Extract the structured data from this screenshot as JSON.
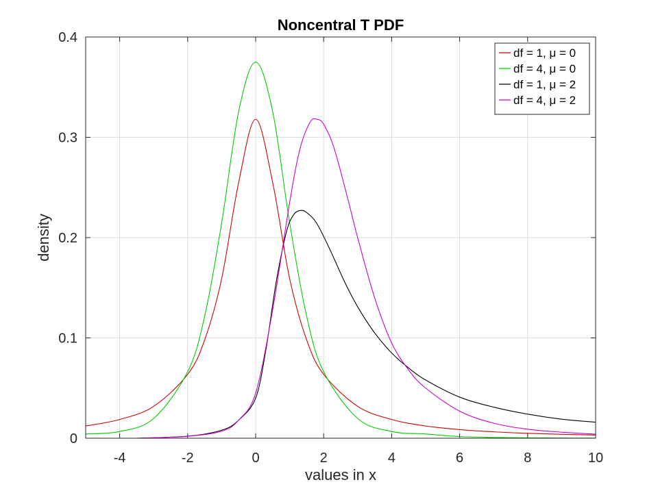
{
  "chart_data": {
    "type": "line",
    "title": "Noncentral T PDF",
    "xlabel": "values in x",
    "ylabel": "density",
    "xlim": [
      -5,
      10
    ],
    "ylim": [
      0,
      0.4
    ],
    "xticks": [
      -4,
      -2,
      0,
      2,
      4,
      6,
      8,
      10
    ],
    "yticks": [
      0,
      0.1,
      0.2,
      0.3,
      0.4
    ],
    "xtick_labels": [
      "-4",
      "-2",
      "0",
      "2",
      "4",
      "6",
      "8",
      "10"
    ],
    "ytick_labels": [
      "0",
      "0.1",
      "0.2",
      "0.3",
      "0.4"
    ],
    "grid": true,
    "legend_position": "top-right",
    "series": [
      {
        "name": "df = 1, μ = 0",
        "color": "#cc0000",
        "x": [
          -5,
          -4,
          -3,
          -2,
          -1.5,
          -1,
          -0.5,
          0,
          0.5,
          1,
          1.5,
          2,
          3,
          4,
          5,
          6,
          7,
          8,
          9,
          10
        ],
        "y": [
          0.0122,
          0.0187,
          0.0318,
          0.0637,
          0.098,
          0.159,
          0.255,
          0.318,
          0.255,
          0.159,
          0.098,
          0.0637,
          0.0318,
          0.0187,
          0.0122,
          0.0086,
          0.0064,
          0.0049,
          0.0039,
          0.0032
        ]
      },
      {
        "name": "df = 4, μ = 0",
        "color": "#00cc00",
        "x": [
          -5,
          -4,
          -3,
          -2,
          -1.5,
          -1,
          -0.5,
          0,
          0.5,
          1,
          1.5,
          2,
          3,
          4,
          5,
          6,
          7,
          8,
          9,
          10
        ],
        "y": [
          0.0042,
          0.0067,
          0.0197,
          0.0663,
          0.1216,
          0.2147,
          0.3257,
          0.375,
          0.3257,
          0.2147,
          0.1216,
          0.0663,
          0.0197,
          0.0067,
          0.0042,
          0.0017,
          0.0008,
          0.0004,
          0.0002,
          0.0001
        ]
      },
      {
        "name": "df = 1, μ = 2",
        "color": "#000000",
        "x": [
          -3.5,
          -2,
          -1,
          -0.5,
          0,
          0.3,
          0.6,
          0.9,
          1.1,
          1.3,
          1.5,
          1.8,
          2.2,
          2.6,
          3,
          3.5,
          4,
          4.5,
          5,
          6,
          7,
          8,
          9,
          10
        ],
        "y": [
          0,
          0.002,
          0.008,
          0.018,
          0.04,
          0.088,
          0.155,
          0.205,
          0.222,
          0.227,
          0.225,
          0.214,
          0.187,
          0.157,
          0.131,
          0.105,
          0.085,
          0.07,
          0.058,
          0.041,
          0.031,
          0.024,
          0.019,
          0.016
        ]
      },
      {
        "name": "df = 4, μ = 2",
        "color": "#cc00cc",
        "x": [
          -3.5,
          -2,
          -1,
          -0.5,
          0,
          0.5,
          1,
          1.3,
          1.6,
          1.8,
          2,
          2.3,
          2.7,
          3,
          3.5,
          4,
          4.5,
          5,
          6,
          7,
          8,
          9,
          10
        ],
        "y": [
          0,
          0.002,
          0.007,
          0.018,
          0.045,
          0.128,
          0.235,
          0.288,
          0.315,
          0.318,
          0.313,
          0.29,
          0.24,
          0.2,
          0.14,
          0.095,
          0.068,
          0.05,
          0.027,
          0.015,
          0.009,
          0.006,
          0.004
        ]
      }
    ]
  }
}
